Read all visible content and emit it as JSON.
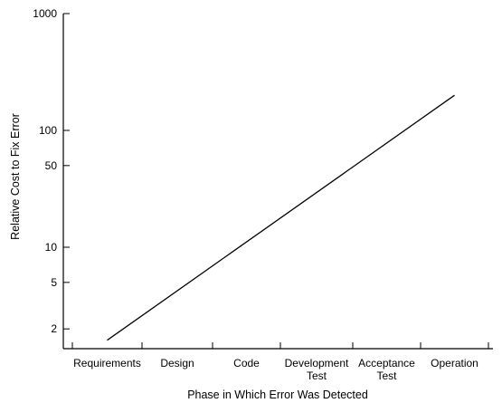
{
  "chart_data": {
    "type": "line",
    "scale_y": "log",
    "grid": false,
    "legend": "none",
    "title": "",
    "xlabel": "Phase in Which Error Was Detected",
    "ylabel": "Relative Cost to Fix Error",
    "ylim": [
      1.3,
      1000
    ],
    "y_ticks": [
      1000,
      100,
      50,
      10,
      5,
      2
    ],
    "categories": [
      [
        "Requirements"
      ],
      [
        "Design"
      ],
      [
        "Code"
      ],
      [
        "Development",
        "Test"
      ],
      [
        "Acceptance",
        "Test"
      ],
      [
        "Operation"
      ]
    ],
    "series": [
      {
        "x": [
          0,
          5
        ],
        "values": [
          1.6,
          200
        ]
      }
    ]
  }
}
